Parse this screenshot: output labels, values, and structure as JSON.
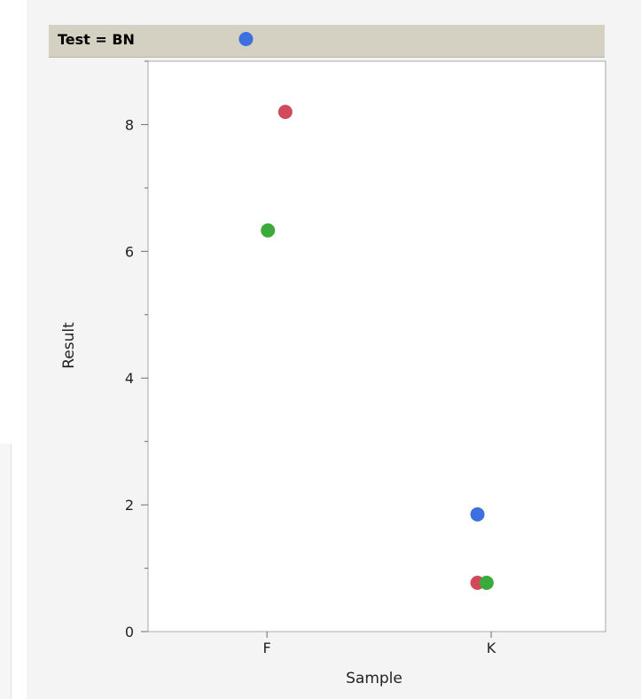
{
  "chart_data": {
    "type": "scatter",
    "title": "Test = BN",
    "xlabel": "Sample",
    "ylabel": "Result",
    "categories": [
      "F",
      "K"
    ],
    "ylim": [
      0,
      9.0
    ],
    "yticks": [
      0,
      2,
      4,
      6,
      8
    ],
    "grid": false,
    "series": [
      {
        "color": "#3e6fdf",
        "points": [
          {
            "x": "F",
            "y": 9.35
          },
          {
            "x": "K",
            "y": 1.85
          }
        ]
      },
      {
        "color": "#d04a5c",
        "points": [
          {
            "x": "F",
            "y": 8.2
          },
          {
            "x": "K",
            "y": 0.77
          }
        ]
      },
      {
        "color": "#3aaa3a",
        "points": [
          {
            "x": "F",
            "y": 6.33
          },
          {
            "x": "K",
            "y": 0.77
          }
        ]
      }
    ]
  }
}
